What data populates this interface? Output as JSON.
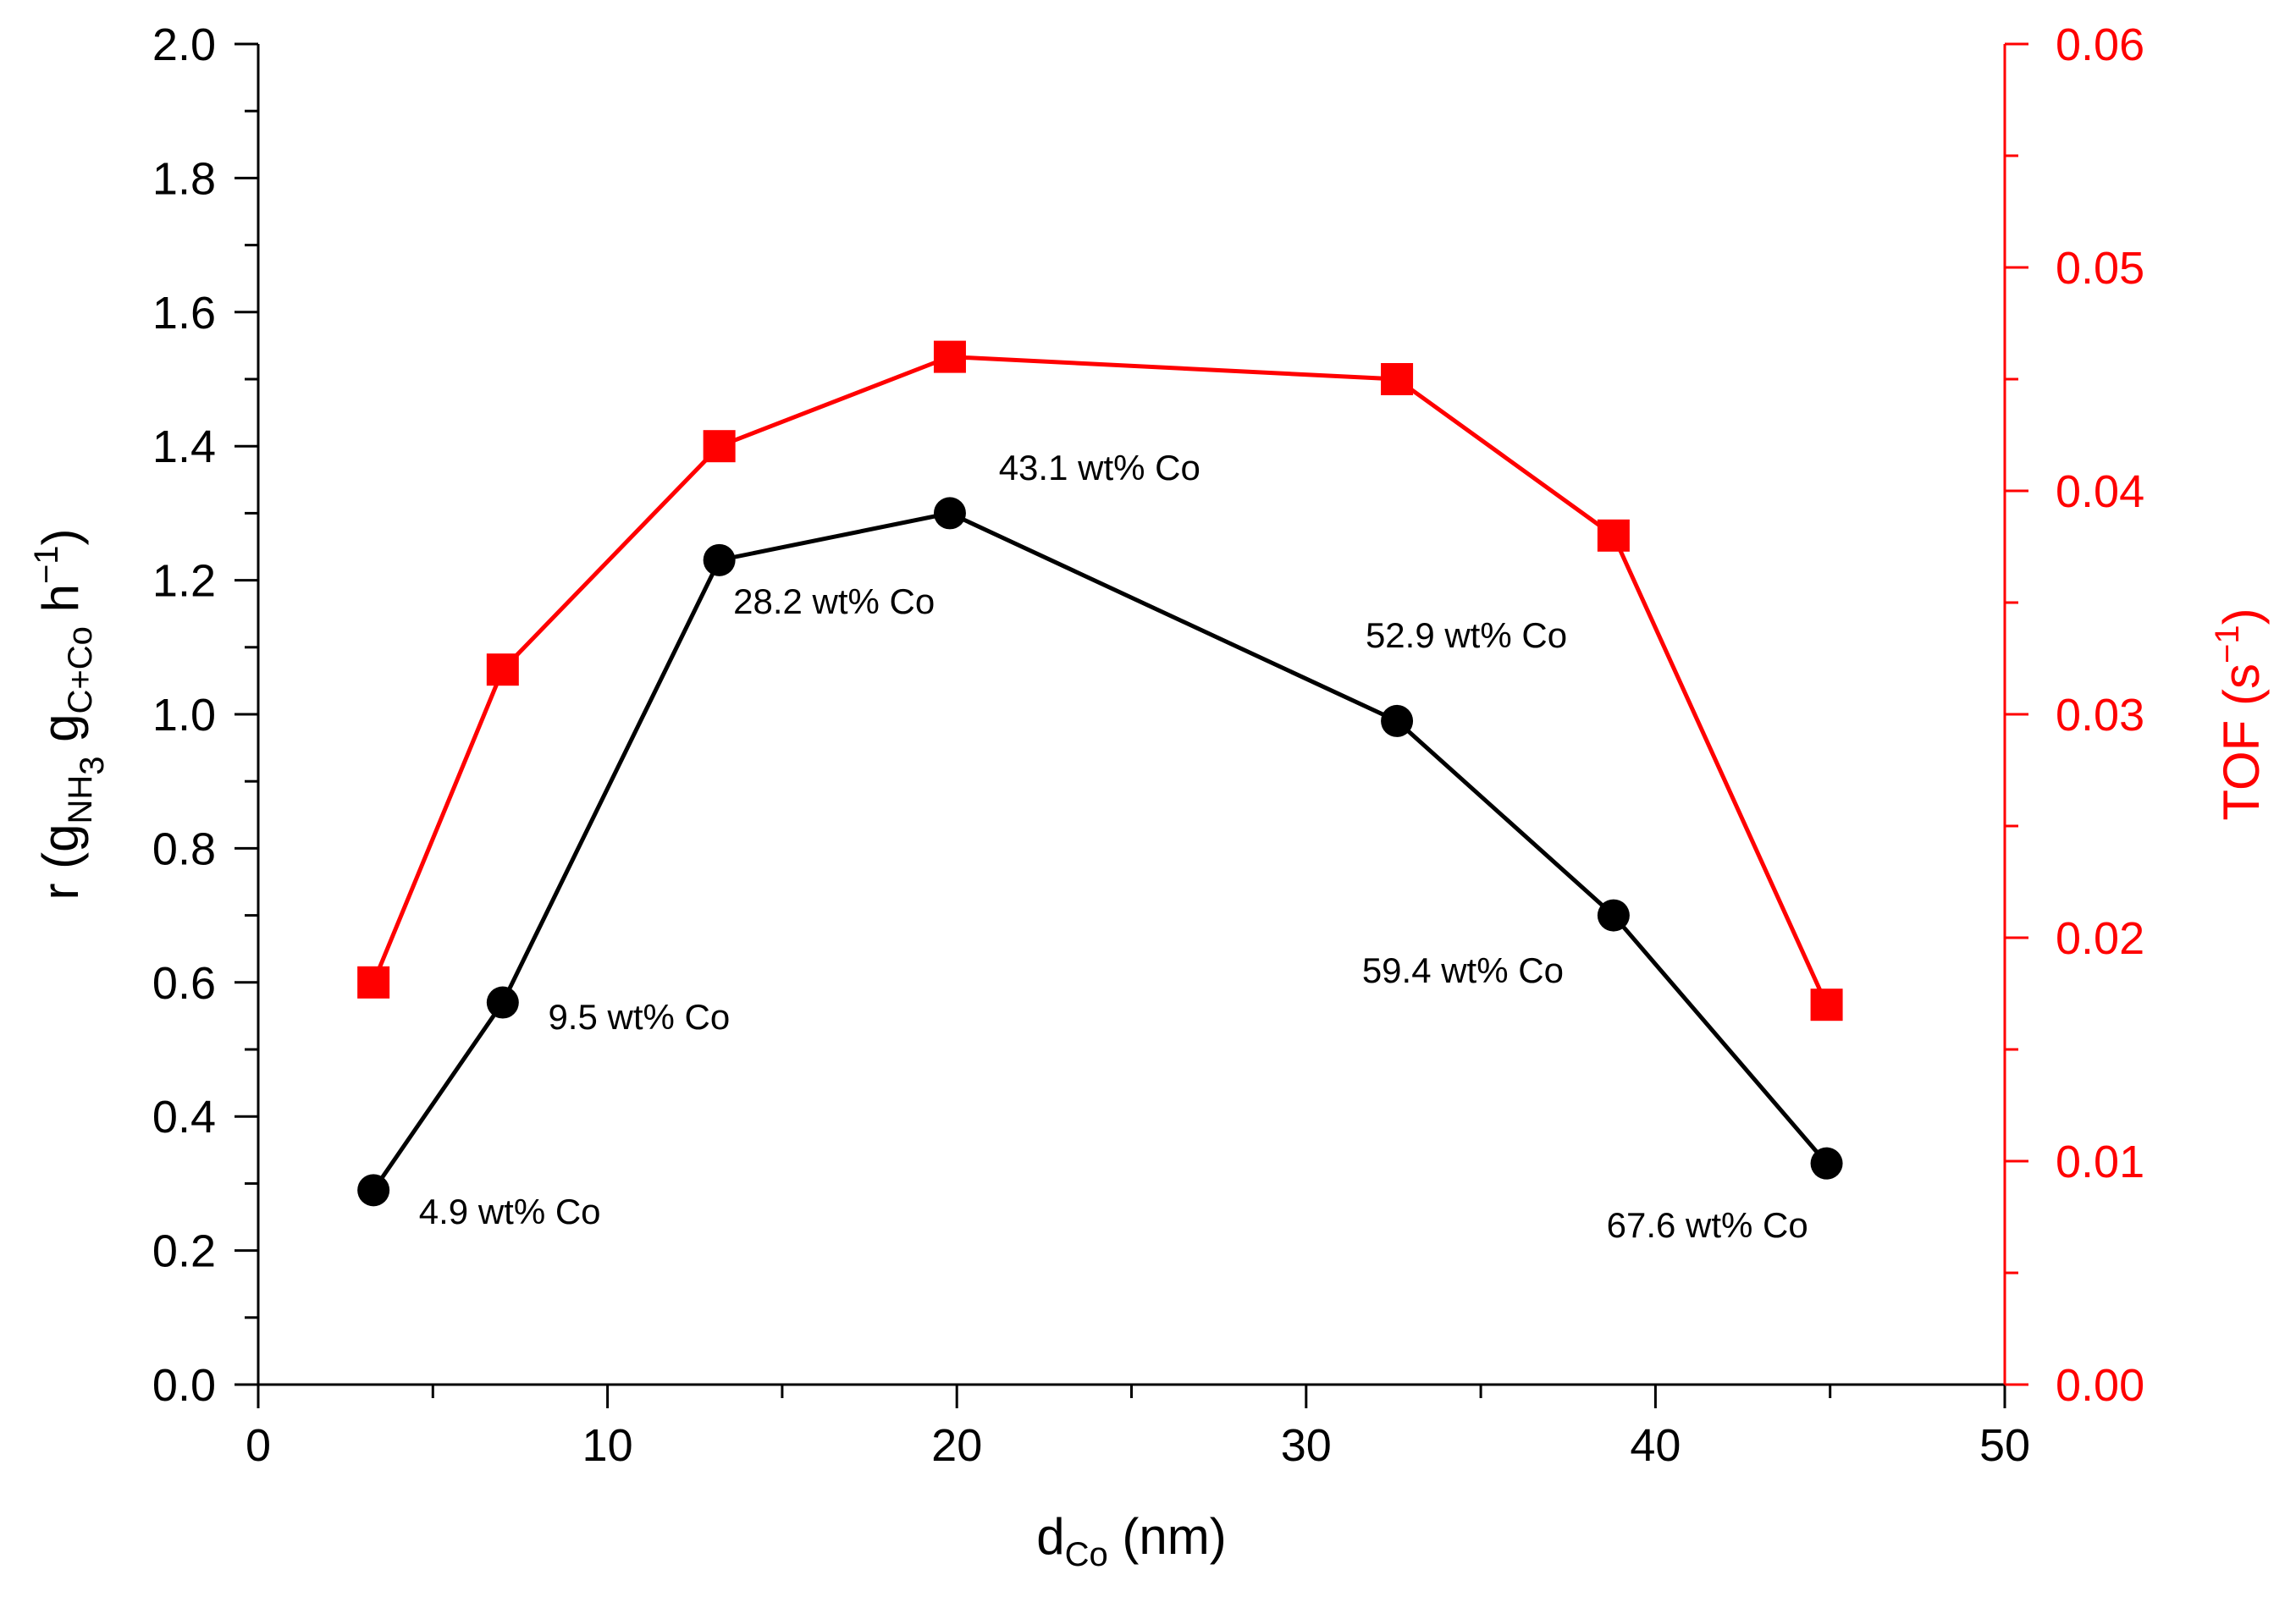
{
  "chart_data": {
    "type": "line",
    "xlabel": {
      "main": "d",
      "sub": "Co",
      "tail": " (nm)"
    },
    "ylabel_left": {
      "parts": [
        {
          "t": "r (g",
          "s": "normal"
        },
        {
          "t": "NH",
          "s": "sub"
        },
        {
          "t": "3",
          "s": "subsub"
        },
        {
          "t": " g",
          "s": "normal"
        },
        {
          "t": "C+Co",
          "s": "sub"
        },
        {
          "t": " h",
          "s": "normal"
        },
        {
          "t": "−1",
          "s": "sup"
        },
        {
          "t": ")",
          "s": "normal"
        }
      ]
    },
    "ylabel_right": {
      "parts": [
        {
          "t": "TOF (s",
          "s": "normal"
        },
        {
          "t": "−1",
          "s": "sup"
        },
        {
          "t": ")",
          "s": "normal"
        }
      ]
    },
    "xlim": [
      0,
      50
    ],
    "ylim_left": [
      0,
      2.0
    ],
    "ylim_right": [
      0,
      0.06
    ],
    "x_ticks": [
      "0",
      "10",
      "20",
      "30",
      "40",
      "50"
    ],
    "y_left_ticks": [
      "0.0",
      "0.2",
      "0.4",
      "0.6",
      "0.8",
      "1.0",
      "1.2",
      "1.4",
      "1.6",
      "1.8",
      "2.0"
    ],
    "y_right_ticks": [
      "0.00",
      "0.01",
      "0.02",
      "0.03",
      "0.04",
      "0.05",
      "0.06"
    ],
    "series": [
      {
        "name": "r",
        "axis": "left",
        "color": "#000000",
        "marker": "circle",
        "x": [
          3.3,
          7.0,
          13.2,
          19.8,
          32.6,
          38.8,
          44.9
        ],
        "y": [
          0.29,
          0.57,
          1.23,
          1.3,
          0.99,
          0.7,
          0.33
        ]
      },
      {
        "name": "TOF",
        "axis": "right",
        "color": "#ff0000",
        "marker": "square",
        "x": [
          3.3,
          7.0,
          13.2,
          19.8,
          32.6,
          38.8,
          44.9
        ],
        "y": [
          0.018,
          0.032,
          0.042,
          0.046,
          0.045,
          0.038,
          0.017
        ]
      }
    ],
    "annotations": [
      {
        "text": "4.9 wt% Co",
        "x": 4.6,
        "y": 0.24
      },
      {
        "text": "9.5 wt% Co",
        "x": 8.3,
        "y": 0.53
      },
      {
        "text": "28.2 wt% Co",
        "x": 13.6,
        "y": 1.15
      },
      {
        "text": "43.1 wt% Co",
        "x": 21.2,
        "y": 1.35
      },
      {
        "text": "52.9 wt% Co",
        "x": 31.7,
        "y": 1.1
      },
      {
        "text": "59.4 wt% Co",
        "x": 31.6,
        "y": 0.6
      },
      {
        "text": "67.6 wt% Co",
        "x": 38.6,
        "y": 0.22
      }
    ],
    "colors": {
      "left_axis": "#000000",
      "right_axis": "#ff0000"
    }
  }
}
